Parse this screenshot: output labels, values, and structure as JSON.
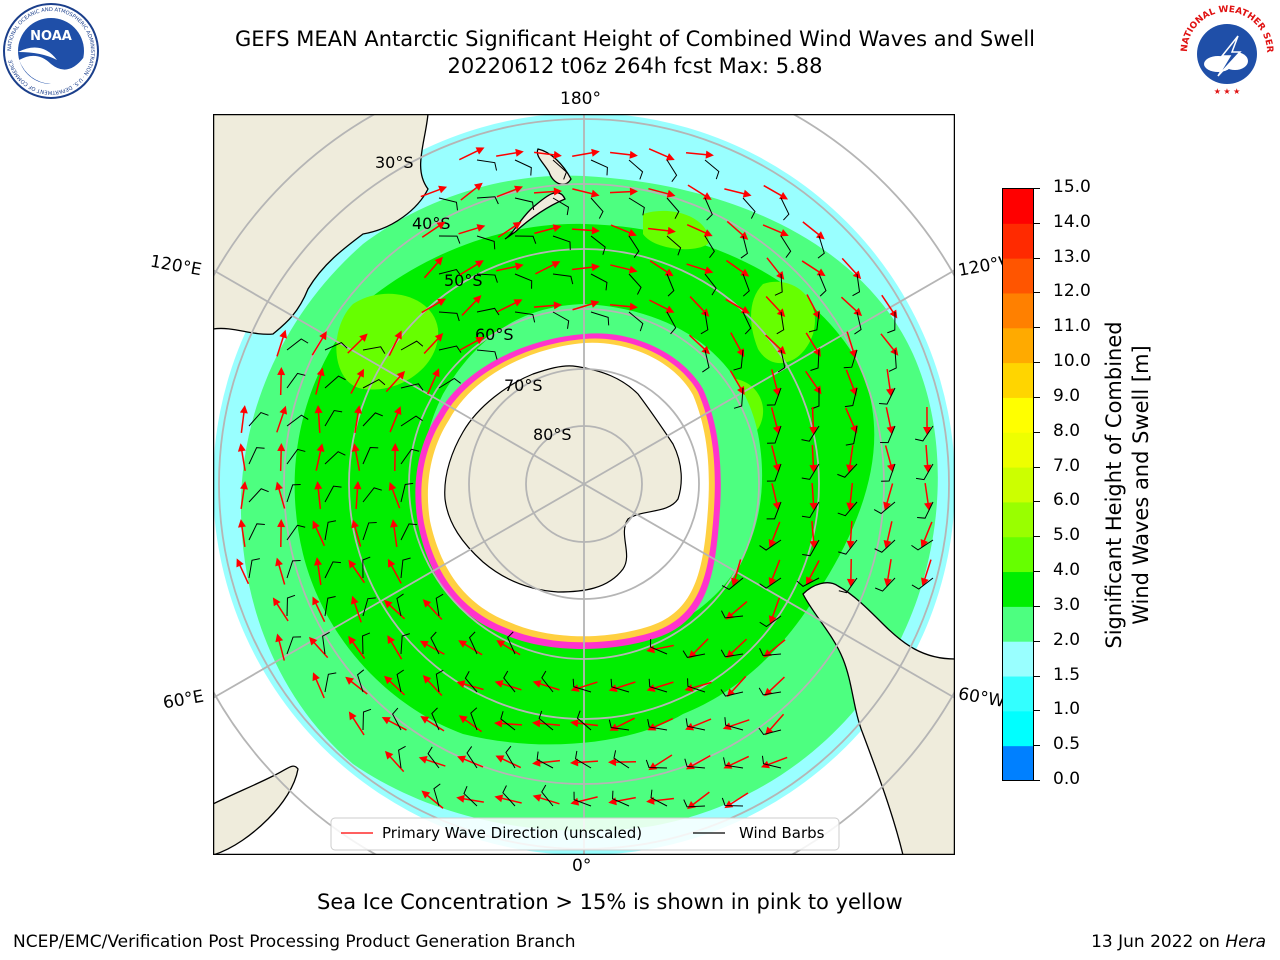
{
  "title": {
    "line1": "GEFS MEAN Antarctic Significant Height of Combined Wind Waves and Swell",
    "line2": "20220612 t06z 264h fcst   Max: 5.88"
  },
  "map": {
    "longitude_labels": {
      "top": "180°",
      "bottom": "0°",
      "upper_left": "120°E",
      "upper_right": "120°W",
      "lower_left": "60°E",
      "lower_right": "60°W"
    },
    "latitude_labels": [
      "30°S",
      "40°S",
      "50°S",
      "60°S",
      "70°S",
      "80°S"
    ],
    "legend": {
      "wave_direction": "Primary Wave Direction (unscaled)",
      "wind_barbs": "Wind Barbs"
    },
    "colors": {
      "land": "#efecdc",
      "ocean_2_3": "#99ffff",
      "ocean_3_4": "#4dff80",
      "ocean_4_5": "#00ee00",
      "ocean_5_6": "#66ff00",
      "ice": "#ff33cc",
      "arrows": "#ff0000"
    }
  },
  "colorbar": {
    "label_line1": "Significant Height of Combined",
    "label_line2": "Wind Waves and Swell [m]",
    "ticks": [
      "15.0",
      "14.0",
      "13.0",
      "12.0",
      "11.0",
      "10.0",
      "9.0",
      "8.0",
      "7.0",
      "6.0",
      "5.0",
      "4.0",
      "3.0",
      "2.0",
      "1.5",
      "1.0",
      "0.5",
      "0.0"
    ],
    "colors": [
      "#ff0000",
      "#ff2a00",
      "#ff5500",
      "#ff8000",
      "#ffaa00",
      "#ffd500",
      "#ffff00",
      "#eeff00",
      "#ccff00",
      "#99ff00",
      "#66ff00",
      "#00ee00",
      "#4dff80",
      "#99ffff",
      "#33ffff",
      "#00ffff",
      "#0080ff",
      "#0000ff"
    ]
  },
  "note": "Sea Ice Concentration > 15% is shown in pink to yellow",
  "footer": {
    "left": "NCEP/EMC/Verification Post Processing Product Generation Branch",
    "right_date": "13 Jun 2022 on",
    "right_host": "Hera"
  },
  "logos": {
    "noaa": "NOAA",
    "noaa_ring": "NATIONAL OCEANIC AND ATMOSPHERIC ADMINISTRATION · U.S. DEPARTMENT OF COMMERCE",
    "nws_ring": "NATIONAL WEATHER SERVICE"
  }
}
